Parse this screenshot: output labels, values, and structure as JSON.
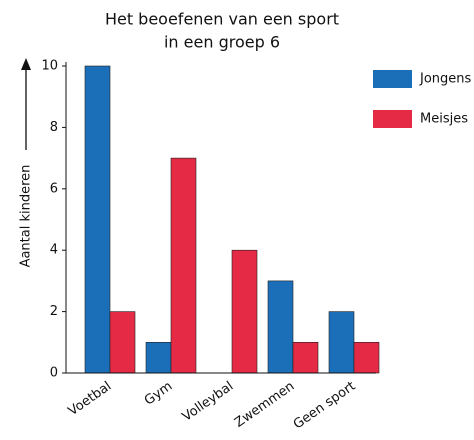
{
  "chart_data": {
    "type": "bar",
    "title": [
      "Het beoefenen van een sport",
      "in een groep 6"
    ],
    "y_label": "Aantal kinderen",
    "categories": [
      "Voetbal",
      "Gym",
      "Volleybal",
      "Zwemmen",
      "Geen sport"
    ],
    "series": [
      {
        "name": "Jongens",
        "color": "#1a6fb8",
        "values": [
          10,
          1,
          0,
          3,
          2
        ]
      },
      {
        "name": "Meisjes",
        "color": "#e42a45",
        "values": [
          2,
          7,
          4,
          1,
          1
        ]
      }
    ],
    "ylim": [
      0,
      10
    ],
    "yticks": [
      0,
      2,
      4,
      6,
      8,
      10
    ],
    "legend": "upper-right"
  }
}
